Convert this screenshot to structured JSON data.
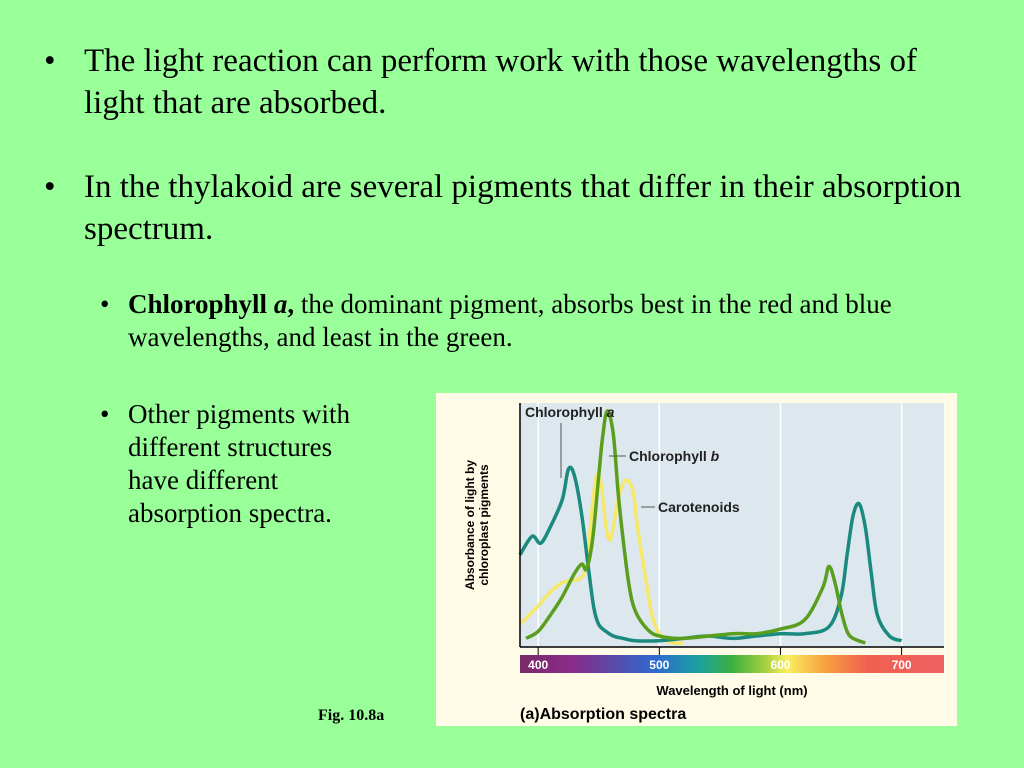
{
  "bullets": [
    {
      "text": "The light reaction can perform work with those wavelengths of light that are absorbed."
    },
    {
      "text": "In the thylakoid are several pigments that differ in their absorption spectrum."
    }
  ],
  "sub_bullets": [
    {
      "bold": "Chlorophyll ",
      "bold_italic": "a",
      "bold_after": ",",
      "rest": " the dominant pigment, absorbs best in the red and blue wavelengths, and least in the green."
    },
    {
      "text": "Other pigments with different structures have different absorption spectra."
    }
  ],
  "bullet_glyph": "•",
  "fig_label": "Fig. 10.8a",
  "chart_data": {
    "type": "line",
    "caption_letter": "(a)",
    "caption": "Absorption spectra",
    "xlabel": "Wavelength of light (nm)",
    "ylabel": "Absorbance of light by chloroplast pigments",
    "ylabel_lines": [
      "Absorbance of light by",
      "chloroplast pigments"
    ],
    "xlim": [
      385,
      735
    ],
    "ylim": [
      0,
      1
    ],
    "x_ticks": [
      "400",
      "500",
      "600",
      "700"
    ],
    "x_tick_values": [
      400,
      500,
      600,
      700
    ],
    "series": [
      {
        "name": "Chlorophyll a",
        "color": "#1a8a7e",
        "x": [
          385,
          395,
          402,
          410,
          420,
          425,
          430,
          436,
          442,
          446,
          450,
          456,
          462,
          470,
          480,
          500,
          520,
          540,
          560,
          580,
          600,
          620,
          640,
          650,
          655,
          660,
          665,
          670,
          675,
          680,
          690,
          700
        ],
        "y": [
          0.38,
          0.46,
          0.43,
          0.5,
          0.62,
          0.75,
          0.72,
          0.55,
          0.3,
          0.15,
          0.08,
          0.05,
          0.03,
          0.02,
          0.01,
          0.01,
          0.02,
          0.03,
          0.02,
          0.03,
          0.04,
          0.04,
          0.07,
          0.2,
          0.38,
          0.55,
          0.6,
          0.5,
          0.3,
          0.12,
          0.03,
          0.01
        ]
      },
      {
        "name": "Chlorophyll b",
        "color": "#5a9e1e",
        "x": [
          390,
          400,
          410,
          420,
          430,
          436,
          440,
          445,
          450,
          453,
          457,
          462,
          466,
          470,
          475,
          480,
          490,
          500,
          520,
          560,
          580,
          600,
          620,
          635,
          640,
          645,
          650,
          655,
          660,
          670
        ],
        "y": [
          0.02,
          0.05,
          0.12,
          0.2,
          0.3,
          0.34,
          0.32,
          0.45,
          0.72,
          0.88,
          1.0,
          0.9,
          0.65,
          0.45,
          0.25,
          0.14,
          0.06,
          0.03,
          0.02,
          0.04,
          0.04,
          0.06,
          0.1,
          0.24,
          0.33,
          0.26,
          0.14,
          0.05,
          0.02,
          0.0
        ]
      },
      {
        "name": "Carotenoids",
        "color": "#f5e86a",
        "x": [
          385,
          400,
          410,
          420,
          428,
          435,
          440,
          444,
          448,
          452,
          456,
          460,
          466,
          472,
          478,
          482,
          488,
          494,
          500,
          506,
          512,
          520
        ],
        "y": [
          0.08,
          0.16,
          0.22,
          0.26,
          0.27,
          0.28,
          0.34,
          0.55,
          0.72,
          0.68,
          0.5,
          0.45,
          0.62,
          0.7,
          0.66,
          0.5,
          0.3,
          0.12,
          0.04,
          0.01,
          0.0,
          0.0
        ]
      }
    ]
  }
}
